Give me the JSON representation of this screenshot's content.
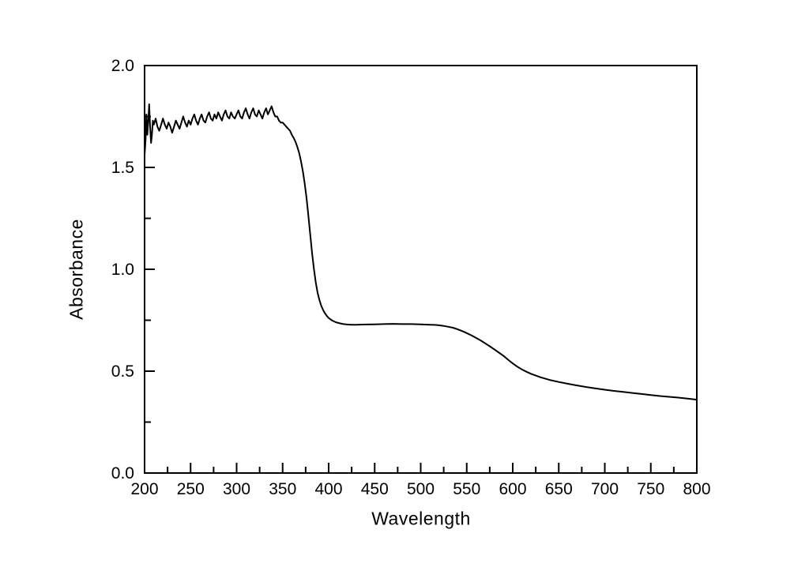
{
  "page": {
    "background_color": "#ffffff"
  },
  "chart_data": {
    "type": "line",
    "xlabel": "Wavelength",
    "ylabel": "Absorbance",
    "xlim": [
      200,
      800
    ],
    "ylim": [
      0.0,
      2.0
    ],
    "grid": false,
    "legend": false,
    "axis_color": "#000000",
    "text_color": "#000000",
    "line_color": "#000000",
    "x_major_ticks": [
      200,
      250,
      300,
      350,
      400,
      450,
      500,
      550,
      600,
      650,
      700,
      750,
      800
    ],
    "x_tick_labels": [
      "200",
      "250",
      "300",
      "350",
      "400",
      "450",
      "500",
      "550",
      "600",
      "650",
      "700",
      "750",
      "800"
    ],
    "x_minor_ticks": [
      225,
      275,
      325,
      375,
      425,
      475,
      525,
      575,
      625,
      675,
      725,
      775
    ],
    "y_major_ticks": [
      0.0,
      0.5,
      1.0,
      1.5,
      2.0
    ],
    "y_tick_labels": [
      "0.0",
      "0.5",
      "1.0",
      "1.5",
      "2.0"
    ],
    "y_minor_ticks": [
      0.25,
      0.75,
      1.25,
      1.75
    ],
    "series": [
      {
        "name": "absorbance-spectrum",
        "points": [
          [
            200,
            1.56
          ],
          [
            201,
            1.63
          ],
          [
            202,
            1.76
          ],
          [
            203,
            1.66
          ],
          [
            204,
            1.73
          ],
          [
            205,
            1.81
          ],
          [
            206,
            1.7
          ],
          [
            207,
            1.62
          ],
          [
            208,
            1.66
          ],
          [
            209,
            1.73
          ],
          [
            210,
            1.71
          ],
          [
            212,
            1.74
          ],
          [
            214,
            1.7
          ],
          [
            216,
            1.68
          ],
          [
            218,
            1.71
          ],
          [
            220,
            1.74
          ],
          [
            222,
            1.71
          ],
          [
            224,
            1.69
          ],
          [
            226,
            1.72
          ],
          [
            228,
            1.7
          ],
          [
            230,
            1.67
          ],
          [
            232,
            1.7
          ],
          [
            234,
            1.73
          ],
          [
            236,
            1.71
          ],
          [
            238,
            1.69
          ],
          [
            240,
            1.72
          ],
          [
            242,
            1.75
          ],
          [
            244,
            1.72
          ],
          [
            246,
            1.7
          ],
          [
            248,
            1.73
          ],
          [
            250,
            1.71
          ],
          [
            252,
            1.74
          ],
          [
            254,
            1.76
          ],
          [
            256,
            1.73
          ],
          [
            258,
            1.71
          ],
          [
            260,
            1.74
          ],
          [
            262,
            1.76
          ],
          [
            264,
            1.73
          ],
          [
            266,
            1.72
          ],
          [
            268,
            1.75
          ],
          [
            270,
            1.77
          ],
          [
            272,
            1.74
          ],
          [
            274,
            1.73
          ],
          [
            276,
            1.76
          ],
          [
            278,
            1.74
          ],
          [
            280,
            1.77
          ],
          [
            282,
            1.75
          ],
          [
            284,
            1.73
          ],
          [
            286,
            1.76
          ],
          [
            288,
            1.78
          ],
          [
            290,
            1.75
          ],
          [
            292,
            1.74
          ],
          [
            294,
            1.77
          ],
          [
            296,
            1.75
          ],
          [
            298,
            1.74
          ],
          [
            300,
            1.76
          ],
          [
            302,
            1.78
          ],
          [
            304,
            1.75
          ],
          [
            306,
            1.74
          ],
          [
            308,
            1.77
          ],
          [
            310,
            1.79
          ],
          [
            312,
            1.76
          ],
          [
            314,
            1.74
          ],
          [
            316,
            1.77
          ],
          [
            318,
            1.79
          ],
          [
            320,
            1.76
          ],
          [
            322,
            1.75
          ],
          [
            324,
            1.78
          ],
          [
            326,
            1.76
          ],
          [
            328,
            1.74
          ],
          [
            330,
            1.77
          ],
          [
            332,
            1.79
          ],
          [
            334,
            1.76
          ],
          [
            336,
            1.78
          ],
          [
            338,
            1.8
          ],
          [
            340,
            1.77
          ],
          [
            342,
            1.75
          ],
          [
            344,
            1.75
          ],
          [
            346,
            1.73
          ],
          [
            348,
            1.72
          ],
          [
            350,
            1.72
          ],
          [
            352,
            1.71
          ],
          [
            354,
            1.7
          ],
          [
            356,
            1.69
          ],
          [
            358,
            1.68
          ],
          [
            360,
            1.66
          ],
          [
            362,
            1.645
          ],
          [
            364,
            1.625
          ],
          [
            366,
            1.6
          ],
          [
            368,
            1.57
          ],
          [
            370,
            1.53
          ],
          [
            372,
            1.48
          ],
          [
            374,
            1.42
          ],
          [
            376,
            1.35
          ],
          [
            378,
            1.26
          ],
          [
            380,
            1.17
          ],
          [
            382,
            1.08
          ],
          [
            384,
            1.0
          ],
          [
            386,
            0.935
          ],
          [
            388,
            0.885
          ],
          [
            390,
            0.848
          ],
          [
            392,
            0.82
          ],
          [
            394,
            0.8
          ],
          [
            396,
            0.784
          ],
          [
            398,
            0.771
          ],
          [
            400,
            0.761
          ],
          [
            404,
            0.748
          ],
          [
            408,
            0.74
          ],
          [
            412,
            0.735
          ],
          [
            416,
            0.731
          ],
          [
            420,
            0.729
          ],
          [
            425,
            0.728
          ],
          [
            430,
            0.728
          ],
          [
            440,
            0.729
          ],
          [
            450,
            0.73
          ],
          [
            460,
            0.731
          ],
          [
            470,
            0.732
          ],
          [
            480,
            0.731
          ],
          [
            490,
            0.731
          ],
          [
            500,
            0.73
          ],
          [
            510,
            0.728
          ],
          [
            515,
            0.727
          ],
          [
            520,
            0.725
          ],
          [
            525,
            0.722
          ],
          [
            530,
            0.718
          ],
          [
            535,
            0.713
          ],
          [
            540,
            0.706
          ],
          [
            545,
            0.697
          ],
          [
            550,
            0.687
          ],
          [
            555,
            0.676
          ],
          [
            560,
            0.664
          ],
          [
            565,
            0.651
          ],
          [
            570,
            0.637
          ],
          [
            575,
            0.622
          ],
          [
            580,
            0.607
          ],
          [
            585,
            0.591
          ],
          [
            590,
            0.575
          ],
          [
            595,
            0.556
          ],
          [
            600,
            0.538
          ],
          [
            605,
            0.522
          ],
          [
            610,
            0.508
          ],
          [
            615,
            0.497
          ],
          [
            620,
            0.487
          ],
          [
            630,
            0.47
          ],
          [
            640,
            0.457
          ],
          [
            650,
            0.447
          ],
          [
            660,
            0.438
          ],
          [
            670,
            0.43
          ],
          [
            680,
            0.422
          ],
          [
            690,
            0.415
          ],
          [
            700,
            0.409
          ],
          [
            710,
            0.403
          ],
          [
            720,
            0.398
          ],
          [
            730,
            0.393
          ],
          [
            740,
            0.388
          ],
          [
            750,
            0.383
          ],
          [
            760,
            0.378
          ],
          [
            770,
            0.374
          ],
          [
            780,
            0.37
          ],
          [
            790,
            0.365
          ],
          [
            800,
            0.36
          ]
        ]
      }
    ]
  }
}
